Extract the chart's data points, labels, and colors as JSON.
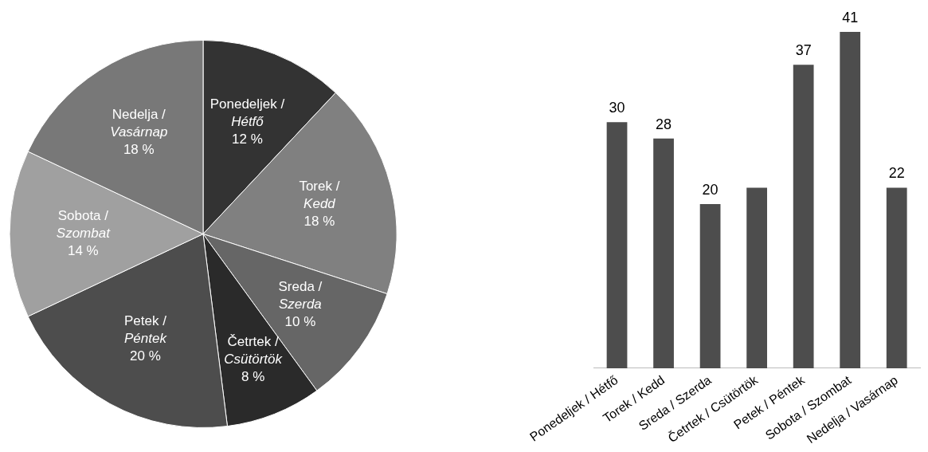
{
  "chart_data": [
    {
      "type": "pie",
      "categories": [
        "Ponedeljek / Hétfő",
        "Torek / Kedd",
        "Sreda / Szerda",
        "Četrtek / Csütörtök",
        "Petek / Péntek",
        "Sobota / Szombat",
        "Nedelja / Vasárnap"
      ],
      "values": [
        12,
        18,
        10,
        8,
        20,
        14,
        18
      ],
      "colors": [
        "#333333",
        "#808080",
        "#666666",
        "#2a2a2a",
        "#4d4d4d",
        "#a0a0a0",
        "#787878"
      ],
      "value_labels": [
        "12 %",
        "18 %",
        "10 %",
        "8 %",
        "20 %",
        "14 %",
        "18 %"
      ],
      "legend": false
    },
    {
      "type": "bar",
      "categories": [
        "Ponedeljek / Hétfő",
        "Torek / Kedd",
        "Sreda / Szerda",
        "Četrtek / Csütörtök",
        "Petek / Péntek",
        "Sobota / Szombat",
        "Nedelja / Vasárnap"
      ],
      "values": [
        30,
        28,
        20,
        22,
        37,
        41,
        22
      ],
      "color": "#4d4d4d",
      "value_labels": [
        "30",
        "28",
        "20",
        null,
        "37",
        "41",
        "22"
      ],
      "ylim": [
        0,
        41
      ],
      "tick_labels": "x",
      "grid": false,
      "legend": false
    }
  ]
}
